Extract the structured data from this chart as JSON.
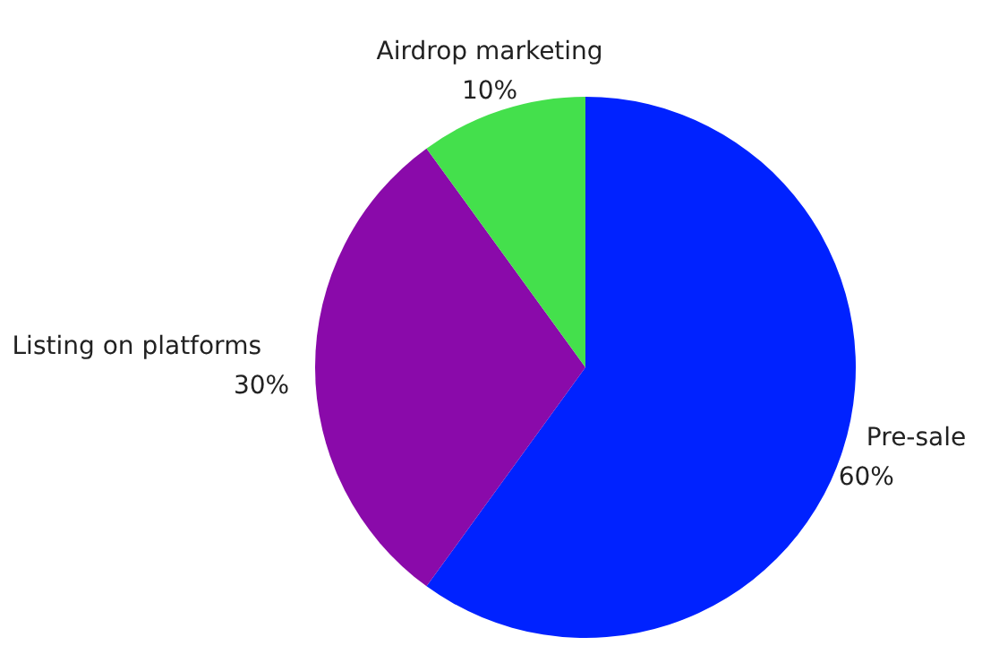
{
  "chart_data": {
    "type": "pie",
    "categories": [
      "Pre-sale",
      "Listing on platforms",
      "Airdrop marketing"
    ],
    "values": [
      60,
      30,
      10
    ],
    "colors": [
      "#0022ff",
      "#8a0aaa",
      "#44e04c"
    ],
    "value_labels": [
      "60%",
      "30%",
      "10%"
    ],
    "legend": false
  }
}
